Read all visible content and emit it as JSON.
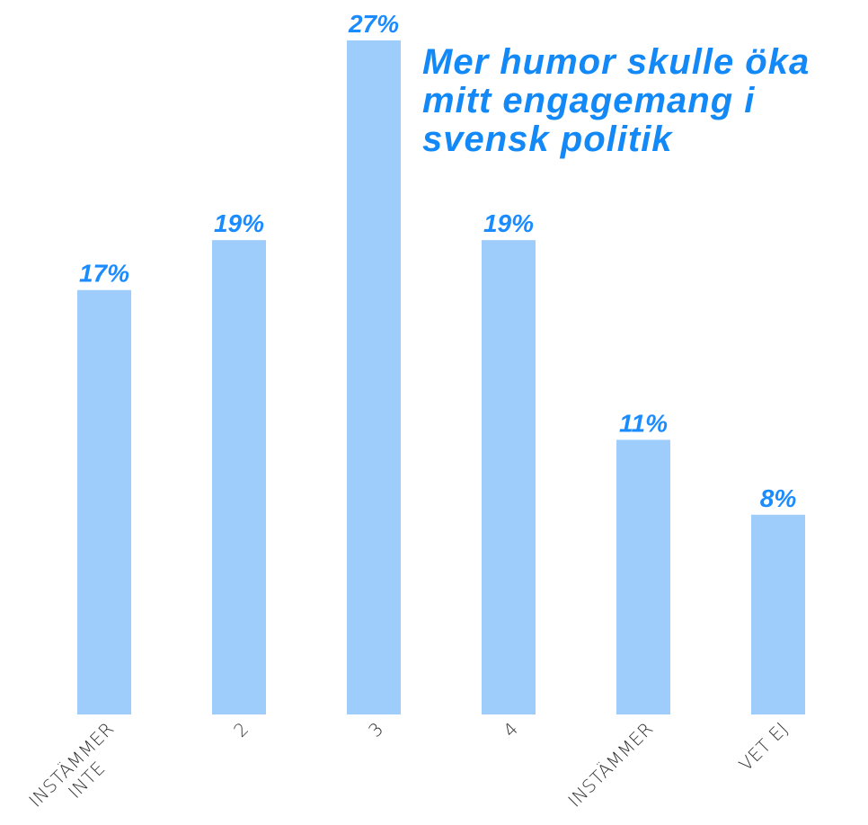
{
  "chart_data": {
    "type": "bar",
    "title": "Mer humor skulle öka mitt engagemang i svensk politik",
    "categories": [
      "INSTÄMMER\nINTE",
      "2",
      "3",
      "4",
      "INSTÄMMER",
      "VET EJ"
    ],
    "values": [
      17,
      19,
      27,
      19,
      11,
      8
    ],
    "value_labels": [
      "17%",
      "19%",
      "27%",
      "19%",
      "11%",
      "8%"
    ],
    "color": "#9ecdfc",
    "label_color": "#1a8cff"
  }
}
